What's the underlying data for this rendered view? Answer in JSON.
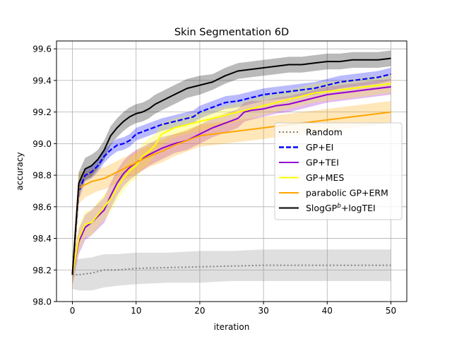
{
  "chart_data": {
    "type": "line",
    "title": "Skin Segmentation 6D",
    "xlabel": "iteration",
    "ylabel": "accuracy",
    "xlim": [
      -2.5,
      52.5
    ],
    "ylim": [
      98.0,
      99.65
    ],
    "xticks": [
      0,
      10,
      20,
      30,
      40,
      50
    ],
    "yticks": [
      98.0,
      98.2,
      98.4,
      98.6,
      98.8,
      99.0,
      99.2,
      99.4,
      99.6
    ],
    "ytick_labels": [
      "98.0",
      "98.2",
      "98.4",
      "98.6",
      "98.8",
      "99.0",
      "99.2",
      "99.4",
      "99.6"
    ],
    "grid": true,
    "legend_position": "center-right",
    "series": [
      {
        "name": "Random",
        "color": "#808080",
        "style": "dotted",
        "x": [
          0,
          1,
          3,
          5,
          7,
          10,
          15,
          20,
          25,
          30,
          40,
          50
        ],
        "y": [
          98.17,
          98.17,
          98.18,
          98.2,
          98.2,
          98.21,
          98.215,
          98.22,
          98.225,
          98.23,
          98.23,
          98.23
        ],
        "lower": [
          98.08,
          98.07,
          98.07,
          98.09,
          98.1,
          98.11,
          98.12,
          98.12,
          98.13,
          98.13,
          98.13,
          98.13
        ],
        "upper": [
          98.26,
          98.27,
          98.28,
          98.3,
          98.3,
          98.31,
          98.31,
          98.32,
          98.32,
          98.33,
          98.33,
          98.33
        ]
      },
      {
        "name": "GP+EI",
        "color": "#0000ff",
        "style": "dashed",
        "x": [
          0,
          1,
          2,
          3,
          4,
          5,
          6,
          7,
          8,
          9,
          10,
          12,
          14,
          16,
          18,
          19,
          20,
          22,
          24,
          26,
          28,
          30,
          32,
          34,
          36,
          38,
          40,
          42,
          44,
          46,
          48,
          50
        ],
        "y": [
          98.17,
          98.7,
          98.8,
          98.82,
          98.86,
          98.92,
          98.96,
          98.99,
          99.0,
          99.02,
          99.06,
          99.09,
          99.12,
          99.14,
          99.16,
          99.17,
          99.2,
          99.23,
          99.26,
          99.27,
          99.29,
          99.31,
          99.32,
          99.33,
          99.34,
          99.35,
          99.37,
          99.39,
          99.4,
          99.41,
          99.42,
          99.44
        ],
        "lower": [
          98.12,
          98.64,
          98.76,
          98.78,
          98.82,
          98.88,
          98.92,
          98.95,
          98.96,
          98.98,
          99.02,
          99.05,
          99.08,
          99.1,
          99.12,
          99.13,
          99.16,
          99.19,
          99.22,
          99.23,
          99.25,
          99.27,
          99.28,
          99.29,
          99.3,
          99.31,
          99.33,
          99.35,
          99.36,
          99.37,
          99.38,
          99.4
        ],
        "upper": [
          98.22,
          98.76,
          98.84,
          98.86,
          98.9,
          98.96,
          99.0,
          99.03,
          99.04,
          99.06,
          99.1,
          99.13,
          99.16,
          99.18,
          99.2,
          99.21,
          99.24,
          99.27,
          99.3,
          99.31,
          99.33,
          99.35,
          99.36,
          99.37,
          99.38,
          99.39,
          99.41,
          99.43,
          99.44,
          99.45,
          99.46,
          99.48
        ]
      },
      {
        "name": "GP+TEI",
        "color": "#9400d3",
        "style": "solid",
        "x": [
          0,
          1,
          2,
          3,
          4,
          5,
          6,
          7,
          8,
          9,
          10,
          12,
          14,
          16,
          18,
          20,
          22,
          24,
          26,
          27,
          28,
          30,
          32,
          34,
          36,
          38,
          40,
          42,
          44,
          46,
          48,
          50
        ],
        "y": [
          98.17,
          98.38,
          98.47,
          98.5,
          98.54,
          98.58,
          98.67,
          98.75,
          98.81,
          98.85,
          98.88,
          98.93,
          98.97,
          99.0,
          99.02,
          99.06,
          99.1,
          99.13,
          99.16,
          99.2,
          99.21,
          99.22,
          99.24,
          99.25,
          99.27,
          99.29,
          99.31,
          99.32,
          99.33,
          99.34,
          99.35,
          99.36
        ],
        "lower": [
          98.1,
          98.3,
          98.39,
          98.42,
          98.46,
          98.5,
          98.59,
          98.67,
          98.73,
          98.77,
          98.8,
          98.86,
          98.9,
          98.94,
          98.96,
          99.0,
          99.04,
          99.07,
          99.1,
          99.14,
          99.15,
          99.17,
          99.19,
          99.2,
          99.22,
          99.24,
          99.26,
          99.27,
          99.28,
          99.29,
          99.3,
          99.31
        ],
        "upper": [
          98.24,
          98.46,
          98.55,
          98.58,
          98.62,
          98.66,
          98.75,
          98.83,
          98.89,
          98.93,
          98.96,
          99.0,
          99.04,
          99.06,
          99.08,
          99.12,
          99.16,
          99.19,
          99.22,
          99.26,
          99.27,
          99.27,
          99.29,
          99.3,
          99.32,
          99.34,
          99.36,
          99.37,
          99.38,
          99.39,
          99.4,
          99.41
        ]
      },
      {
        "name": "GP+MES",
        "color": "#ffff00",
        "style": "solid",
        "x": [
          0,
          1,
          2,
          3,
          4,
          5,
          6,
          7,
          8,
          9,
          10,
          11,
          12,
          13,
          14,
          16,
          18,
          20,
          22,
          24,
          26,
          28,
          30,
          32,
          34,
          36,
          38,
          40,
          42,
          44,
          46,
          48,
          50
        ],
        "y": [
          98.17,
          98.4,
          98.49,
          98.5,
          98.55,
          98.6,
          98.65,
          98.72,
          98.78,
          98.83,
          98.86,
          98.92,
          98.95,
          98.99,
          99.06,
          99.1,
          99.12,
          99.14,
          99.16,
          99.18,
          99.2,
          99.22,
          99.24,
          99.26,
          99.28,
          99.3,
          99.32,
          99.33,
          99.34,
          99.35,
          99.36,
          99.37,
          99.38
        ],
        "lower": [
          98.1,
          98.32,
          98.41,
          98.42,
          98.47,
          98.52,
          98.57,
          98.64,
          98.7,
          98.75,
          98.78,
          98.84,
          98.87,
          98.92,
          98.99,
          99.04,
          99.06,
          99.08,
          99.1,
          99.12,
          99.14,
          99.16,
          99.18,
          99.2,
          99.22,
          99.24,
          99.26,
          99.27,
          99.28,
          99.29,
          99.3,
          99.31,
          99.32
        ],
        "upper": [
          98.24,
          98.48,
          98.57,
          98.58,
          98.63,
          98.68,
          98.73,
          98.8,
          98.86,
          98.91,
          98.94,
          99.0,
          99.03,
          99.06,
          99.13,
          99.16,
          99.18,
          99.2,
          99.22,
          99.24,
          99.26,
          99.28,
          99.3,
          99.32,
          99.34,
          99.36,
          99.38,
          99.39,
          99.4,
          99.41,
          99.42,
          99.43,
          99.44
        ]
      },
      {
        "name": "parabolic GP+ERM",
        "color": "#ffa500",
        "style": "solid",
        "x": [
          0,
          1,
          2,
          3,
          4,
          5,
          6,
          7,
          8,
          9,
          10,
          12,
          14,
          16,
          18,
          20,
          22,
          24,
          26,
          28,
          30,
          32,
          34,
          36,
          38,
          40,
          42,
          44,
          46,
          48,
          50
        ],
        "y": [
          98.17,
          98.72,
          98.74,
          98.76,
          98.77,
          98.78,
          98.8,
          98.82,
          98.84,
          98.86,
          98.88,
          98.92,
          98.95,
          98.99,
          99.02,
          99.05,
          99.06,
          99.07,
          99.08,
          99.09,
          99.1,
          99.11,
          99.12,
          99.13,
          99.14,
          99.15,
          99.16,
          99.17,
          99.18,
          99.19,
          99.2
        ],
        "lower": [
          98.07,
          98.62,
          98.66,
          98.68,
          98.7,
          98.71,
          98.73,
          98.75,
          98.77,
          98.79,
          98.81,
          98.85,
          98.88,
          98.92,
          98.95,
          98.98,
          98.99,
          99.0,
          99.01,
          99.02,
          99.03,
          99.04,
          99.05,
          99.06,
          99.07,
          99.08,
          99.09,
          99.1,
          99.11,
          99.12,
          99.13
        ],
        "upper": [
          98.27,
          98.82,
          98.82,
          98.84,
          98.84,
          98.85,
          98.87,
          98.89,
          98.91,
          98.93,
          98.95,
          98.99,
          99.02,
          99.06,
          99.09,
          99.12,
          99.13,
          99.14,
          99.15,
          99.16,
          99.17,
          99.18,
          99.19,
          99.2,
          99.21,
          99.22,
          99.23,
          99.24,
          99.25,
          99.26,
          99.27
        ]
      },
      {
        "name": "SlogGP$^b$+logTEI",
        "color": "#000000",
        "style": "solid",
        "x": [
          0,
          1,
          2,
          3,
          4,
          5,
          6,
          7,
          8,
          9,
          10,
          11,
          12,
          13,
          14,
          15,
          16,
          17,
          18,
          20,
          22,
          24,
          26,
          28,
          30,
          32,
          34,
          36,
          38,
          40,
          42,
          44,
          46,
          48,
          50
        ],
        "y": [
          98.17,
          98.75,
          98.84,
          98.86,
          98.9,
          98.96,
          99.05,
          99.1,
          99.14,
          99.17,
          99.19,
          99.2,
          99.22,
          99.25,
          99.27,
          99.29,
          99.31,
          99.33,
          99.35,
          99.37,
          99.39,
          99.43,
          99.46,
          99.47,
          99.48,
          99.49,
          99.5,
          99.5,
          99.51,
          99.52,
          99.52,
          99.53,
          99.53,
          99.53,
          99.54
        ],
        "lower": [
          98.1,
          98.68,
          98.77,
          98.79,
          98.84,
          98.9,
          98.99,
          99.04,
          99.08,
          99.11,
          99.13,
          99.14,
          99.16,
          99.19,
          99.21,
          99.23,
          99.25,
          99.27,
          99.29,
          99.31,
          99.34,
          99.38,
          99.41,
          99.42,
          99.43,
          99.44,
          99.45,
          99.45,
          99.46,
          99.47,
          99.47,
          99.48,
          99.48,
          99.48,
          99.49
        ],
        "upper": [
          98.24,
          98.82,
          98.91,
          98.93,
          98.96,
          99.02,
          99.11,
          99.16,
          99.2,
          99.23,
          99.25,
          99.26,
          99.28,
          99.31,
          99.33,
          99.35,
          99.37,
          99.39,
          99.41,
          99.43,
          99.44,
          99.48,
          99.51,
          99.52,
          99.53,
          99.54,
          99.55,
          99.55,
          99.56,
          99.57,
          99.57,
          99.58,
          99.58,
          99.58,
          99.59
        ]
      }
    ]
  }
}
